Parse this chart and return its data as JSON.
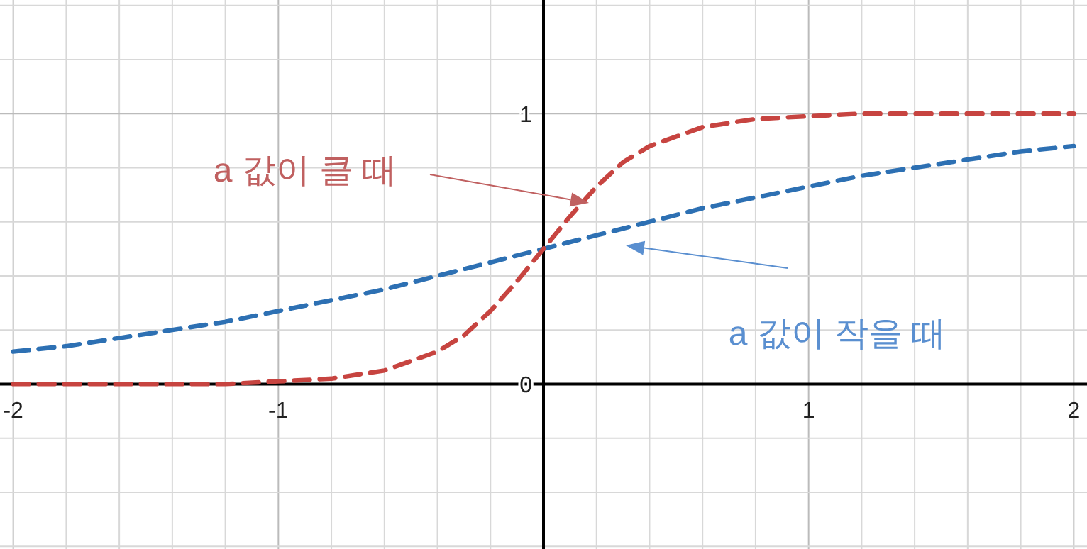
{
  "chart_data": {
    "type": "line",
    "line_style": "dashed",
    "marker": "none",
    "grid": true,
    "xlim": [
      -2.05,
      2.05
    ],
    "ylim": [
      -0.61,
      1.42
    ],
    "xticks": [
      -2,
      {
        "value": -1.8,
        "label": null
      },
      {
        "value": -1.6,
        "label": null
      },
      {
        "value": -1.4,
        "label": null
      },
      {
        "value": -1.2,
        "label": null
      },
      -1,
      {
        "value": -0.8,
        "label": null
      },
      {
        "value": -0.6,
        "label": null
      },
      {
        "value": -0.4,
        "label": null
      },
      {
        "value": -0.2,
        "label": null
      },
      {
        "value": 0,
        "label": null
      },
      {
        "value": 0.2,
        "label": null
      },
      {
        "value": 0.4,
        "label": null
      },
      {
        "value": 0.6,
        "label": null
      },
      {
        "value": 0.8,
        "label": null
      },
      1,
      {
        "value": 1.2,
        "label": null
      },
      {
        "value": 1.4,
        "label": null
      },
      {
        "value": 1.6,
        "label": null
      },
      {
        "value": 1.8,
        "label": null
      },
      2
    ],
    "yticks": [
      {
        "value": -0.6,
        "label": null
      },
      {
        "value": -0.4,
        "label": null
      },
      {
        "value": -0.2,
        "label": null
      },
      0,
      {
        "value": 0.2,
        "label": null
      },
      {
        "value": 0.4,
        "label": null
      },
      {
        "value": 0.6,
        "label": null
      },
      {
        "value": 0.8,
        "label": null
      },
      1,
      {
        "value": 1.2,
        "label": null
      },
      {
        "value": 1.4,
        "label": null
      }
    ],
    "series": [
      {
        "color": "#2d70b3",
        "x": [
          -2,
          -1.8,
          -1.6,
          -1.4,
          -1.2,
          -1,
          -0.8,
          -0.6,
          -0.4,
          -0.2,
          0,
          0.2,
          0.4,
          0.6,
          0.8,
          1,
          1.2,
          1.4,
          1.6,
          1.8,
          2
        ],
        "values": [
          0.12,
          0.14,
          0.17,
          0.2,
          0.23,
          0.27,
          0.31,
          0.35,
          0.4,
          0.45,
          0.5,
          0.55,
          0.6,
          0.65,
          0.69,
          0.73,
          0.77,
          0.8,
          0.83,
          0.86,
          0.88
        ]
      },
      {
        "color": "#c74440",
        "x": [
          -2,
          -1.6,
          -1.2,
          -1,
          -0.8,
          -0.6,
          -0.4,
          -0.3,
          -0.2,
          -0.1,
          0,
          0.1,
          0.2,
          0.3,
          0.4,
          0.6,
          0.8,
          1,
          1.2,
          1.6,
          2
        ],
        "values": [
          0,
          0,
          0,
          0.01,
          0.02,
          0.05,
          0.12,
          0.18,
          0.27,
          0.38,
          0.5,
          0.62,
          0.73,
          0.82,
          0.88,
          0.95,
          0.98,
          0.99,
          1,
          1,
          1
        ]
      }
    ],
    "annotations": [
      "a 값이 클 때",
      "a 값이 작을 때"
    ]
  }
}
